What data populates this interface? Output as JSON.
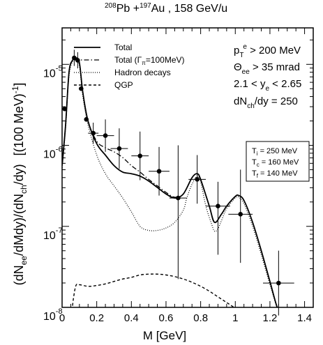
{
  "chart_data": {
    "type": "line",
    "title": {
      "nuc1_mass": "208",
      "nuc1": "Pb",
      "plus": " +",
      "nuc2_mass": "197",
      "nuc2": "Au",
      "energy": " , 158 GeV/u"
    },
    "xlabel": "M [GeV]",
    "ylabel": {
      "p1": "(dN",
      "p1_sub": "ee",
      "p2": "/dMdy)/(dN",
      "p2_sub": "ch",
      "p3": "/dy)",
      "p4": "[(100 MeV)",
      "p4_sup": "-1",
      "p5": "]"
    },
    "xlim": [
      0,
      1.45
    ],
    "ylim_log10": [
      -8,
      -4.55
    ],
    "log_y": true,
    "xticks": [
      {
        "v": 0,
        "label": "0"
      },
      {
        "v": 0.2,
        "label": "0.2"
      },
      {
        "v": 0.4,
        "label": "0.4"
      },
      {
        "v": 0.6,
        "label": "0.6"
      },
      {
        "v": 0.8,
        "label": "0.8"
      },
      {
        "v": 1.0,
        "label": "1"
      },
      {
        "v": 1.2,
        "label": "1.2"
      },
      {
        "v": 1.4,
        "label": "1.4"
      }
    ],
    "yticks": [
      {
        "exp": -5,
        "base": "10",
        "sup": "-5"
      },
      {
        "exp": -6,
        "base": "10",
        "sup": "-6"
      },
      {
        "exp": -7,
        "base": "10",
        "sup": "-7"
      },
      {
        "exp": -8,
        "base": "10",
        "sup": "-8"
      }
    ],
    "legend": {
      "position": "top-left",
      "entries": [
        {
          "label": "Total",
          "style": "solid"
        },
        {
          "label": "Total (Γ",
          "sub": "π",
          "label_tail": "=100MeV)",
          "style": "dashdot"
        },
        {
          "label": "Hadron decays",
          "style": "dotted"
        },
        {
          "label": "QGP",
          "style": "dashed"
        }
      ]
    },
    "cuts": [
      {
        "a": "p",
        "sub": "T",
        "sup": "e",
        "b": " > 200 MeV"
      },
      {
        "a": "Θ",
        "sub": "ee",
        "sup": "",
        "b": " > 35 mrad"
      },
      {
        "a": "2.1 < y",
        "sub": "e",
        "sup": "",
        "b": " < 2.65"
      },
      {
        "a": "dN",
        "sub": "ch",
        "sup": "",
        "b": "/dy = 250"
      }
    ],
    "temps": [
      {
        "a": "T",
        "sub": "i",
        "b": " = 250 MeV"
      },
      {
        "a": "T",
        "sub": "c",
        "b": " = 160 MeV"
      },
      {
        "a": "T",
        "sub": "f",
        "b": " = 140 MeV"
      }
    ],
    "series": [
      {
        "name": "Total",
        "style": "solid",
        "x": [
          0.0,
          0.02,
          0.04,
          0.06,
          0.08,
          0.1,
          0.12,
          0.15,
          0.2,
          0.25,
          0.3,
          0.35,
          0.4,
          0.45,
          0.5,
          0.55,
          0.6,
          0.65,
          0.7,
          0.75,
          0.78,
          0.8,
          0.85,
          0.88,
          0.92,
          0.95,
          1.0,
          1.02,
          1.05,
          1.1,
          1.15,
          1.2,
          1.25,
          1.3
        ],
        "y": [
          -6.25,
          -5.75,
          -5.1,
          -4.95,
          -4.92,
          -4.98,
          -5.35,
          -5.7,
          -5.98,
          -6.12,
          -6.25,
          -6.33,
          -6.35,
          -6.38,
          -6.44,
          -6.52,
          -6.6,
          -6.65,
          -6.6,
          -6.4,
          -6.35,
          -6.42,
          -6.75,
          -6.95,
          -6.85,
          -6.75,
          -6.63,
          -6.62,
          -6.68,
          -6.95,
          -7.3,
          -7.68,
          -8.05,
          -8.2
        ]
      },
      {
        "name": "Total (Γπ=100MeV)",
        "style": "dashdot",
        "x": [
          0.0,
          0.02,
          0.04,
          0.06,
          0.08,
          0.1,
          0.12,
          0.15,
          0.2,
          0.25,
          0.3,
          0.35,
          0.4,
          0.45,
          0.5,
          0.55,
          0.6,
          0.65,
          0.7,
          0.75,
          0.78,
          0.8,
          0.85,
          0.88,
          0.92,
          0.95,
          1.0,
          1.02,
          1.05,
          1.1,
          1.15,
          1.2,
          1.25,
          1.3
        ],
        "y": [
          -6.25,
          -5.75,
          -5.1,
          -4.95,
          -4.92,
          -4.98,
          -5.35,
          -5.7,
          -5.95,
          -6.03,
          -6.08,
          -6.15,
          -6.25,
          -6.33,
          -6.42,
          -6.5,
          -6.58,
          -6.64,
          -6.6,
          -6.4,
          -6.35,
          -6.42,
          -6.75,
          -6.95,
          -6.85,
          -6.75,
          -6.63,
          -6.62,
          -6.68,
          -6.95,
          -7.3,
          -7.68,
          -8.05,
          -8.2
        ]
      },
      {
        "name": "Hadron decays",
        "style": "dotted",
        "x": [
          0.0,
          0.02,
          0.04,
          0.06,
          0.08,
          0.1,
          0.12,
          0.15,
          0.2,
          0.25,
          0.3,
          0.35,
          0.4,
          0.45,
          0.5,
          0.55,
          0.6,
          0.65,
          0.7,
          0.72,
          0.75,
          0.78,
          0.8,
          0.83,
          0.86,
          0.88,
          0.9,
          0.92,
          0.95,
          1.0,
          1.02,
          1.05,
          1.1,
          1.15,
          1.2,
          1.25,
          1.3
        ],
        "y": [
          -6.3,
          -5.8,
          -5.15,
          -4.97,
          -4.95,
          -5.02,
          -5.4,
          -5.75,
          -6.12,
          -6.35,
          -6.5,
          -6.65,
          -6.82,
          -7.0,
          -7.05,
          -7.05,
          -7.02,
          -6.95,
          -6.8,
          -6.65,
          -6.48,
          -6.38,
          -6.45,
          -6.75,
          -6.95,
          -7.06,
          -7.03,
          -6.93,
          -6.78,
          -6.65,
          -6.64,
          -6.72,
          -7.0,
          -7.35,
          -7.72,
          -8.05,
          -8.25
        ]
      },
      {
        "name": "QGP",
        "style": "dashed",
        "x": [
          0.055,
          0.065,
          0.08,
          0.1,
          0.15,
          0.2,
          0.25,
          0.3,
          0.35,
          0.4,
          0.45,
          0.5,
          0.55,
          0.6,
          0.65,
          0.7,
          0.75,
          0.8,
          0.85,
          0.9,
          0.95,
          1.0,
          1.05
        ],
        "y": [
          -8.1,
          -7.9,
          -7.73,
          -7.72,
          -7.74,
          -7.73,
          -7.71,
          -7.68,
          -7.65,
          -7.63,
          -7.6,
          -7.59,
          -7.59,
          -7.6,
          -7.62,
          -7.65,
          -7.69,
          -7.74,
          -7.8,
          -7.87,
          -7.94,
          -8.01,
          -8.08
        ]
      }
    ],
    "data_points": [
      {
        "x": 0.015,
        "y": -5.55,
        "xerr": 0.0,
        "yerr": [
          0.0,
          0.0
        ]
      },
      {
        "x": 0.07,
        "y": -4.92,
        "xerr": 0.0,
        "yerr": [
          0.1,
          0.1
        ]
      },
      {
        "x": 0.09,
        "y": -4.95,
        "xerr": 0.0,
        "yerr": [
          0.1,
          0.1
        ]
      },
      {
        "x": 0.11,
        "y": -5.3,
        "xerr": 0.0,
        "yerr": [
          0.0,
          0.0
        ]
      },
      {
        "x": 0.14,
        "y": -5.68,
        "xerr": 0.0,
        "yerr": [
          0.0,
          0.0
        ]
      },
      {
        "x": 0.18,
        "y": -5.85,
        "xerr": 0.03,
        "yerr": [
          0.13,
          0.13
        ]
      },
      {
        "x": 0.25,
        "y": -5.88,
        "xerr": 0.05,
        "yerr": [
          0.2,
          0.2
        ]
      },
      {
        "x": 0.33,
        "y": -6.04,
        "xerr": 0.05,
        "yerr": [
          0.25,
          0.25
        ]
      },
      {
        "x": 0.45,
        "y": -6.13,
        "xerr": 0.05,
        "yerr": [
          0.3,
          0.3
        ]
      },
      {
        "x": 0.56,
        "y": -6.32,
        "xerr": 0.06,
        "yerr": [
          0.3,
          0.3
        ]
      },
      {
        "x": 0.67,
        "y": -6.65,
        "xerr": 0.05,
        "yerr": [
          1.0,
          0.65
        ]
      },
      {
        "x": 0.78,
        "y": -6.42,
        "xerr": 0.05,
        "yerr": [
          0.3,
          0.3
        ]
      },
      {
        "x": 0.9,
        "y": -6.75,
        "xerr": 0.07,
        "yerr": [
          0.6,
          0.3
        ]
      },
      {
        "x": 1.03,
        "y": -6.85,
        "xerr": 0.07,
        "yerr": [
          0.6,
          0.55
        ]
      },
      {
        "x": 1.25,
        "y": -7.7,
        "xerr": 0.09,
        "yerr": [
          0.4,
          0.4
        ]
      }
    ]
  }
}
